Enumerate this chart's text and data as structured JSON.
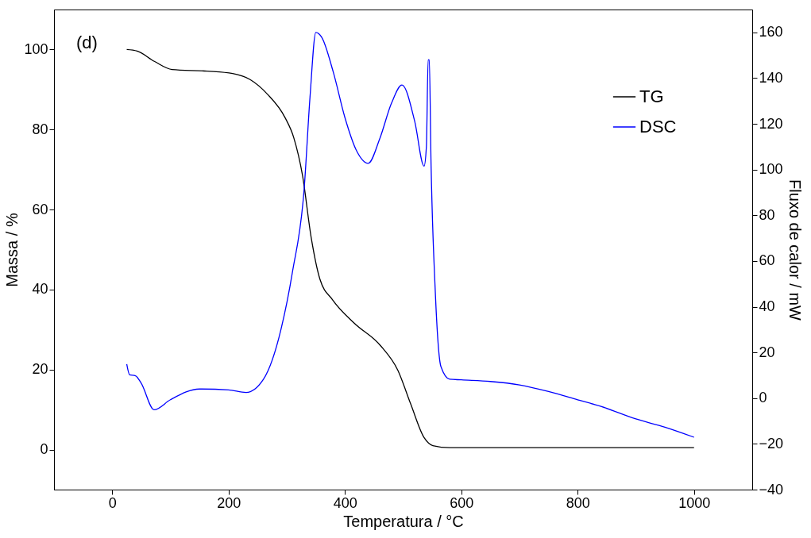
{
  "chart_data": {
    "type": "line",
    "xlabel": "Temperatura / °C",
    "ylabel": "Massa / %",
    "y2label": "Fluxo de calor / mW",
    "xlim": [
      -100,
      1100
    ],
    "xticks": [
      0,
      200,
      400,
      600,
      800,
      1000
    ],
    "ylim": [
      -10,
      110
    ],
    "yticks": [
      0,
      20,
      40,
      60,
      80,
      100
    ],
    "y2lim": [
      -40,
      170
    ],
    "y2ticks": [
      -40,
      -20,
      0,
      20,
      40,
      60,
      80,
      100,
      120,
      140,
      160
    ],
    "legend": "top right",
    "grid": false,
    "annotations": [
      "(d)"
    ],
    "series": [
      {
        "name": "TG",
        "color": "#000000",
        "x": [
          25,
          43,
          73,
          103,
          163,
          207,
          237,
          267,
          297,
          312,
          327,
          342,
          357,
          379,
          416,
          461,
          491,
          513,
          536,
          551,
          580,
          1000
        ],
        "values": [
          100,
          99.6,
          97,
          95,
          94.6,
          94,
          92.5,
          88.8,
          83,
          78,
          68.6,
          53,
          42.6,
          37.4,
          31.6,
          26,
          19.8,
          11.4,
          3,
          1,
          0.5,
          0.5
        ]
      },
      {
        "name": "DSC",
        "color": "#0000ff",
        "axis": "y2",
        "x": [
          25,
          30,
          40,
          50,
          72,
          100,
          150,
          200,
          230,
          260,
          290,
          310,
          330,
          340,
          350,
          360,
          380,
          400,
          420,
          440,
          460,
          480,
          498,
          520,
          536,
          540,
          543,
          545,
          548,
          555,
          565,
          580,
          600,
          650,
          700,
          750,
          800,
          840,
          900,
          950,
          1000
        ],
        "values": [
          14.9,
          10.2,
          9.8,
          6.5,
          -5.1,
          -0.7,
          4,
          3.6,
          2.5,
          8.3,
          30,
          55.5,
          91.8,
          131.8,
          160,
          157.9,
          142.6,
          122.7,
          108.2,
          102.7,
          113.6,
          129,
          137,
          121,
          101.5,
          110,
          148,
          148,
          102.7,
          48.3,
          13.8,
          8.3,
          8,
          7.3,
          5.8,
          2.9,
          -0.7,
          -3.6,
          -9.1,
          -12.7,
          -17.1
        ]
      }
    ]
  }
}
